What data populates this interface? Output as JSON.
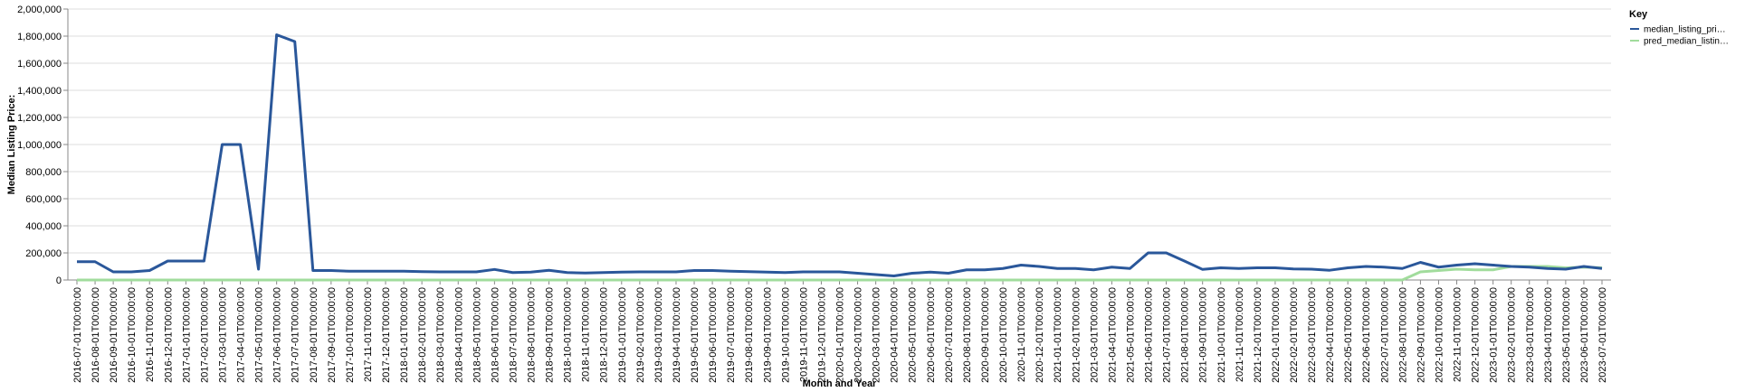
{
  "chart_data": {
    "type": "line",
    "xlabel": "Month and Year",
    "ylabel": "Median Listing Price:",
    "ylim": [
      0,
      2000000
    ],
    "yticks": [
      "0",
      "200,000",
      "400,000",
      "600,000",
      "800,000",
      "1,000,000",
      "1,200,000",
      "1,400,000",
      "1,600,000",
      "1,800,000",
      "2,000,000"
    ],
    "grid": true,
    "legend": {
      "title": "Key",
      "placement": "top-right"
    },
    "x": [
      "2016-07-01T00:00:00",
      "2016-08-01T00:00:00",
      "2016-09-01T00:00:00",
      "2016-10-01T00:00:00",
      "2016-11-01T00:00:00",
      "2016-12-01T00:00:00",
      "2017-01-01T00:00:00",
      "2017-02-01T00:00:00",
      "2017-03-01T00:00:00",
      "2017-04-01T00:00:00",
      "2017-05-01T00:00:00",
      "2017-06-01T00:00:00",
      "2017-07-01T00:00:00",
      "2017-08-01T00:00:00",
      "2017-09-01T00:00:00",
      "2017-10-01T00:00:00",
      "2017-11-01T00:00:00",
      "2017-12-01T00:00:00",
      "2018-01-01T00:00:00",
      "2018-02-01T00:00:00",
      "2018-03-01T00:00:00",
      "2018-04-01T00:00:00",
      "2018-05-01T00:00:00",
      "2018-06-01T00:00:00",
      "2018-07-01T00:00:00",
      "2018-08-01T00:00:00",
      "2018-09-01T00:00:00",
      "2018-10-01T00:00:00",
      "2018-11-01T00:00:00",
      "2018-12-01T00:00:00",
      "2019-01-01T00:00:00",
      "2019-02-01T00:00:00",
      "2019-03-01T00:00:00",
      "2019-04-01T00:00:00",
      "2019-05-01T00:00:00",
      "2019-06-01T00:00:00",
      "2019-07-01T00:00:00",
      "2019-08-01T00:00:00",
      "2019-09-01T00:00:00",
      "2019-10-01T00:00:00",
      "2019-11-01T00:00:00",
      "2019-12-01T00:00:00",
      "2020-01-01T00:00:00",
      "2020-02-01T00:00:00",
      "2020-03-01T00:00:00",
      "2020-04-01T00:00:00",
      "2020-05-01T00:00:00",
      "2020-06-01T00:00:00",
      "2020-07-01T00:00:00",
      "2020-08-01T00:00:00",
      "2020-09-01T00:00:00",
      "2020-10-01T00:00:00",
      "2020-11-01T00:00:00",
      "2020-12-01T00:00:00",
      "2021-01-01T00:00:00",
      "2021-02-01T00:00:00",
      "2021-03-01T00:00:00",
      "2021-04-01T00:00:00",
      "2021-05-01T00:00:00",
      "2021-06-01T00:00:00",
      "2021-07-01T00:00:00",
      "2021-08-01T00:00:00",
      "2021-09-01T00:00:00",
      "2021-10-01T00:00:00",
      "2021-11-01T00:00:00",
      "2021-12-01T00:00:00",
      "2022-01-01T00:00:00",
      "2022-02-01T00:00:00",
      "2022-03-01T00:00:00",
      "2022-04-01T00:00:00",
      "2022-05-01T00:00:00",
      "2022-06-01T00:00:00",
      "2022-07-01T00:00:00",
      "2022-08-01T00:00:00",
      "2022-09-01T00:00:00",
      "2022-10-01T00:00:00",
      "2022-11-01T00:00:00",
      "2022-12-01T00:00:00",
      "2023-01-01T00:00:00",
      "2023-02-01T00:00:00",
      "2023-03-01T00:00:00",
      "2023-04-01T00:00:00",
      "2023-05-01T00:00:00",
      "2023-06-01T00:00:00",
      "2023-07-01T00:00:00"
    ],
    "series": [
      {
        "name": "median_listing_pri…",
        "color": "#2a579a",
        "values": [
          135000,
          135000,
          60000,
          60000,
          70000,
          140000,
          140000,
          140000,
          1000000,
          1000000,
          80000,
          1810000,
          1760000,
          70000,
          70000,
          65000,
          65000,
          65000,
          65000,
          62000,
          60000,
          60000,
          60000,
          78000,
          55000,
          58000,
          72000,
          55000,
          52000,
          55000,
          58000,
          60000,
          60000,
          60000,
          70000,
          70000,
          65000,
          62000,
          58000,
          55000,
          60000,
          60000,
          60000,
          50000,
          40000,
          30000,
          50000,
          58000,
          50000,
          75000,
          75000,
          85000,
          110000,
          100000,
          85000,
          85000,
          75000,
          95000,
          85000,
          200000,
          200000,
          140000,
          78000,
          90000,
          85000,
          90000,
          90000,
          82000,
          80000,
          72000,
          90000,
          100000,
          95000,
          85000,
          130000,
          95000,
          110000,
          120000,
          110000,
          100000,
          95000,
          85000,
          80000,
          100000,
          85000
        ],
        "pred_start_index": null
      },
      {
        "name": "pred_median_listin…",
        "color": "#a1dc9c",
        "values": [
          0,
          0,
          0,
          0,
          0,
          0,
          0,
          0,
          0,
          0,
          0,
          0,
          0,
          0,
          0,
          0,
          0,
          0,
          0,
          0,
          0,
          0,
          0,
          0,
          0,
          0,
          0,
          0,
          0,
          0,
          0,
          0,
          0,
          0,
          0,
          0,
          0,
          0,
          0,
          0,
          0,
          0,
          0,
          0,
          0,
          0,
          0,
          0,
          0,
          0,
          0,
          0,
          0,
          0,
          0,
          0,
          0,
          0,
          0,
          0,
          0,
          0,
          0,
          0,
          0,
          0,
          0,
          0,
          0,
          0,
          0,
          0,
          0,
          0,
          60000,
          70000,
          80000,
          75000,
          75000,
          100000,
          100000,
          100000,
          90000,
          95000,
          90000
        ]
      }
    ]
  }
}
